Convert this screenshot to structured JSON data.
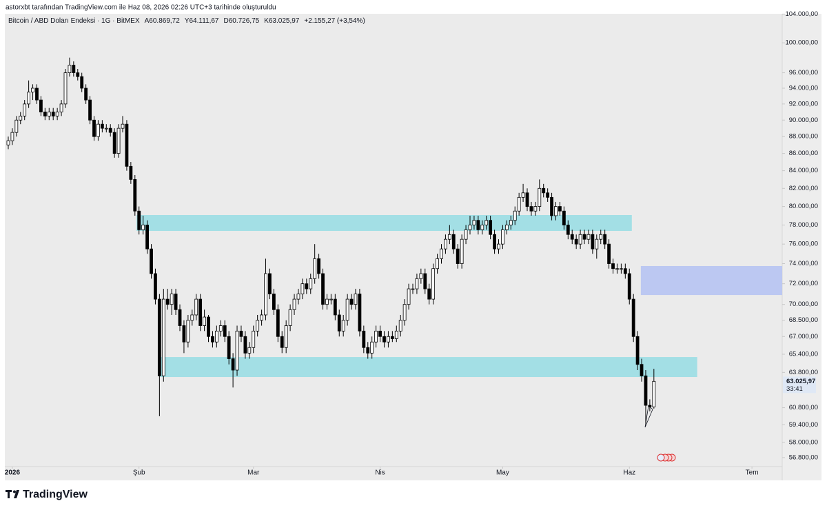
{
  "header": {
    "credit": "astorxbt tarafından TradingView.com ile Haz 08, 2026 02:26 UTC+3 tarihinde oluşturuldu"
  },
  "chart_data": {
    "type": "candlestick",
    "symbol": "Bitcoin / ABD Doları Endeksi · 1G · BitMEX",
    "legend": [
      "A60.869,72",
      "Y64.111,67",
      "D60.726,75",
      "K63.025,97",
      "+2.155,27 (+3,54%)"
    ],
    "x": [
      0,
      1,
      2,
      3,
      4,
      5,
      6,
      7,
      8,
      9,
      10,
      11,
      12,
      13,
      14,
      15,
      16,
      17,
      18,
      19,
      20,
      21,
      22,
      23,
      24,
      25,
      26,
      27,
      28,
      29,
      30,
      31,
      32,
      33,
      34,
      35,
      36,
      37,
      38,
      39,
      40,
      41,
      42,
      43,
      44,
      45,
      46,
      47,
      48,
      49,
      50,
      51,
      52,
      53,
      54,
      55,
      56,
      57,
      58,
      59,
      60,
      61,
      62,
      63,
      64,
      65,
      66,
      67,
      68,
      69,
      70,
      71,
      72,
      73,
      74,
      75,
      76,
      77,
      78,
      79,
      80,
      81,
      82,
      83,
      84,
      85,
      86,
      87,
      88,
      89,
      90,
      91,
      92,
      93,
      94,
      95,
      96,
      97,
      98,
      99,
      100,
      101,
      102,
      103,
      104,
      105,
      106,
      107,
      108,
      109,
      110,
      111,
      112,
      113,
      114,
      115,
      116,
      117,
      118,
      119,
      120,
      121,
      122,
      123,
      124,
      125,
      126,
      127,
      128,
      129,
      130,
      131,
      132,
      133,
      134,
      135,
      136,
      137,
      138,
      139,
      140,
      141,
      142,
      143,
      144,
      145,
      146,
      147,
      148,
      149,
      150,
      151,
      152,
      153,
      154,
      155,
      156,
      157,
      158
    ],
    "ohlc": [
      [
        87000,
        88000,
        86500,
        87500
      ],
      [
        87500,
        89000,
        87000,
        88500
      ],
      [
        88500,
        90500,
        88000,
        90000
      ],
      [
        90000,
        91000,
        89500,
        90500
      ],
      [
        90500,
        92500,
        90000,
        92000
      ],
      [
        92000,
        95000,
        91500,
        93500
      ],
      [
        93500,
        94500,
        92500,
        94000
      ],
      [
        94000,
        94500,
        92000,
        92500
      ],
      [
        92500,
        93000,
        90500,
        91000
      ],
      [
        91000,
        91500,
        90000,
        90500
      ],
      [
        90500,
        91500,
        90000,
        91000
      ],
      [
        91000,
        91500,
        90000,
        90500
      ],
      [
        90500,
        91500,
        90000,
        91000
      ],
      [
        91000,
        92500,
        90500,
        92000
      ],
      [
        92000,
        96500,
        91500,
        96000
      ],
      [
        96000,
        98000,
        95500,
        97000
      ],
      [
        97000,
        97500,
        95500,
        96000
      ],
      [
        96000,
        96500,
        95000,
        95500
      ],
      [
        95500,
        96000,
        93500,
        94000
      ],
      [
        94000,
        94500,
        92000,
        92500
      ],
      [
        92500,
        93000,
        89500,
        90000
      ],
      [
        90000,
        90500,
        87500,
        88000
      ],
      [
        88000,
        90000,
        87500,
        89500
      ],
      [
        89500,
        90000,
        88500,
        89000
      ],
      [
        89000,
        89500,
        88500,
        89000
      ],
      [
        89000,
        89500,
        88000,
        88500
      ],
      [
        88500,
        89000,
        85500,
        86000
      ],
      [
        86000,
        89500,
        85500,
        89000
      ],
      [
        89000,
        90500,
        88500,
        89500
      ],
      [
        89500,
        90000,
        84000,
        84500
      ],
      [
        84500,
        85000,
        82500,
        83000
      ],
      [
        83000,
        83500,
        79000,
        79500
      ],
      [
        79500,
        80000,
        77000,
        77500
      ],
      [
        77500,
        79000,
        77000,
        78000
      ],
      [
        78000,
        78500,
        75000,
        75500
      ],
      [
        75500,
        76000,
        72500,
        73000
      ],
      [
        73000,
        73500,
        70000,
        70500
      ],
      [
        70500,
        71000,
        60100,
        63500
      ],
      [
        63500,
        71500,
        63000,
        70500
      ],
      [
        70500,
        71500,
        69500,
        70000
      ],
      [
        70000,
        71500,
        69000,
        71000
      ],
      [
        71000,
        71500,
        69000,
        69500
      ],
      [
        69500,
        70000,
        67500,
        68000
      ],
      [
        68000,
        68500,
        65500,
        66500
      ],
      [
        66500,
        69000,
        66000,
        68500
      ],
      [
        68500,
        69500,
        68000,
        69000
      ],
      [
        69000,
        71000,
        68500,
        70500
      ],
      [
        70500,
        71000,
        67500,
        68000
      ],
      [
        68000,
        69500,
        67500,
        68800
      ],
      [
        68800,
        69000,
        66500,
        67000
      ],
      [
        67000,
        67500,
        66000,
        66500
      ],
      [
        66500,
        68000,
        66000,
        67500
      ],
      [
        67500,
        68500,
        67000,
        68000
      ],
      [
        68000,
        68500,
        66500,
        67000
      ],
      [
        67000,
        67500,
        64500,
        65000
      ],
      [
        65000,
        65500,
        62500,
        64000
      ],
      [
        64000,
        68000,
        63500,
        67500
      ],
      [
        67500,
        68000,
        66500,
        67000
      ],
      [
        67000,
        67500,
        65000,
        65500
      ],
      [
        65500,
        66500,
        65000,
        66000
      ],
      [
        66000,
        68000,
        65500,
        67500
      ],
      [
        67500,
        69000,
        67000,
        68500
      ],
      [
        68500,
        69500,
        68000,
        69000
      ],
      [
        69000,
        74500,
        68500,
        73000
      ],
      [
        73000,
        73500,
        70500,
        71000
      ],
      [
        71000,
        71500,
        69000,
        69500
      ],
      [
        69500,
        70000,
        66500,
        67000
      ],
      [
        67000,
        67500,
        65500,
        66000
      ],
      [
        66000,
        68500,
        65500,
        68000
      ],
      [
        68000,
        70000,
        67500,
        69500
      ],
      [
        69500,
        71000,
        69000,
        70500
      ],
      [
        70500,
        71500,
        70000,
        71000
      ],
      [
        71000,
        72500,
        70500,
        72000
      ],
      [
        72000,
        72500,
        71000,
        71500
      ],
      [
        71500,
        73000,
        71000,
        72500
      ],
      [
        72500,
        76000,
        72000,
        74500
      ],
      [
        74500,
        75000,
        72500,
        73000
      ],
      [
        73000,
        73500,
        69500,
        70000
      ],
      [
        70000,
        71000,
        69500,
        70500
      ],
      [
        70500,
        71000,
        70000,
        70500
      ],
      [
        70500,
        71000,
        68500,
        69000
      ],
      [
        69000,
        69500,
        67000,
        67500
      ],
      [
        67500,
        69000,
        67000,
        68500
      ],
      [
        68500,
        71000,
        68000,
        70500
      ],
      [
        70500,
        71000,
        69500,
        70000
      ],
      [
        70000,
        71500,
        69500,
        71000
      ],
      [
        71000,
        71500,
        67000,
        67500
      ],
      [
        67500,
        68000,
        65500,
        66000
      ],
      [
        66000,
        66500,
        65000,
        65500
      ],
      [
        65500,
        67000,
        65000,
        66500
      ],
      [
        66500,
        68000,
        66000,
        67500
      ],
      [
        67500,
        68000,
        66500,
        67000
      ],
      [
        67000,
        67500,
        66000,
        66500
      ],
      [
        66500,
        67500,
        66000,
        67000
      ],
      [
        67000,
        67500,
        66500,
        66800
      ],
      [
        66800,
        68000,
        66500,
        67500
      ],
      [
        67500,
        69000,
        67000,
        68500
      ],
      [
        68500,
        70500,
        68000,
        70000
      ],
      [
        70000,
        72000,
        69500,
        71500
      ],
      [
        71500,
        72000,
        71000,
        71500
      ],
      [
        71500,
        73000,
        71000,
        72500
      ],
      [
        72500,
        73500,
        72000,
        73000
      ],
      [
        73000,
        73500,
        71000,
        71500
      ],
      [
        71500,
        72000,
        70000,
        70500
      ],
      [
        70500,
        74000,
        70000,
        73500
      ],
      [
        73500,
        75000,
        73000,
        74500
      ],
      [
        74500,
        76000,
        74000,
        75500
      ],
      [
        75500,
        77000,
        75000,
        76500
      ],
      [
        76500,
        78000,
        76000,
        77000
      ],
      [
        77000,
        77500,
        75000,
        75500
      ],
      [
        75500,
        76000,
        73500,
        74000
      ],
      [
        74000,
        77000,
        73500,
        76500
      ],
      [
        76500,
        78000,
        76000,
        77500
      ],
      [
        77500,
        79000,
        77000,
        78000
      ],
      [
        78000,
        79000,
        77500,
        78500
      ],
      [
        78500,
        79000,
        77000,
        77500
      ],
      [
        77500,
        78500,
        77000,
        78000
      ],
      [
        78000,
        79000,
        77500,
        78500
      ],
      [
        78500,
        79000,
        76500,
        77000
      ],
      [
        77000,
        77500,
        75000,
        75500
      ],
      [
        75500,
        76500,
        75000,
        76000
      ],
      [
        76000,
        78000,
        75500,
        77500
      ],
      [
        77500,
        78500,
        77000,
        78000
      ],
      [
        78000,
        79000,
        77500,
        78500
      ],
      [
        78500,
        80000,
        78000,
        79500
      ],
      [
        79500,
        81500,
        79000,
        81000
      ],
      [
        81000,
        82500,
        80500,
        81500
      ],
      [
        81500,
        82000,
        79500,
        80000
      ],
      [
        80000,
        80500,
        79000,
        79500
      ],
      [
        79500,
        80500,
        79000,
        80000
      ],
      [
        80000,
        83000,
        79500,
        82000
      ],
      [
        82000,
        82500,
        81000,
        81500
      ],
      [
        81500,
        82000,
        80500,
        81000
      ],
      [
        81000,
        81500,
        78500,
        79000
      ],
      [
        79000,
        80500,
        78500,
        80000
      ],
      [
        80000,
        80500,
        79000,
        79500
      ],
      [
        79500,
        80000,
        77500,
        78000
      ],
      [
        78000,
        78500,
        76500,
        77000
      ],
      [
        77000,
        77500,
        76000,
        76500
      ],
      [
        76500,
        77000,
        75500,
        76000
      ],
      [
        76000,
        77500,
        75500,
        77000
      ],
      [
        77000,
        77500,
        76000,
        76500
      ],
      [
        76500,
        77500,
        76000,
        77000
      ],
      [
        77000,
        77500,
        75000,
        75500
      ],
      [
        75500,
        77000,
        74500,
        76500
      ],
      [
        76500,
        77500,
        76000,
        77000
      ],
      [
        77000,
        77500,
        75500,
        76000
      ],
      [
        76000,
        76500,
        73500,
        74000
      ],
      [
        74000,
        74500,
        73000,
        73500
      ],
      [
        73500,
        74000,
        73000,
        73500
      ],
      [
        73500,
        74000,
        73000,
        73500
      ],
      [
        73500,
        74000,
        72500,
        73000
      ],
      [
        73000,
        73500,
        70000,
        70500
      ],
      [
        70500,
        71000,
        66500,
        67000
      ],
      [
        67000,
        67500,
        64000,
        64500
      ],
      [
        64500,
        65000,
        63000,
        63500
      ],
      [
        63500,
        64000,
        59500,
        61000
      ],
      [
        61000,
        61500,
        60500,
        60870
      ],
      [
        60869.72,
        64111.67,
        60726.75,
        63025.97
      ]
    ],
    "up_color": "#ffffff",
    "down_color": "#000000",
    "wick_color": "#000000",
    "log_scale": true,
    "grid": false,
    "xlim": [
      -0.84,
      189.4
    ],
    "ylim": [
      56110,
      104040
    ],
    "yticks": [
      {
        "value": 104000,
        "label": "104.000,00"
      },
      {
        "value": 100000,
        "label": "100.000,00"
      },
      {
        "value": 96000,
        "label": "96.000,00"
      },
      {
        "value": 94000,
        "label": "94.000,00"
      },
      {
        "value": 92000,
        "label": "92.000,00"
      },
      {
        "value": 90000,
        "label": "90.000,00"
      },
      {
        "value": 88000,
        "label": "88.000,00"
      },
      {
        "value": 86000,
        "label": "86.000,00"
      },
      {
        "value": 84000,
        "label": "84.000,00"
      },
      {
        "value": 82000,
        "label": "82.000,00"
      },
      {
        "value": 80000,
        "label": "80.000,00"
      },
      {
        "value": 78000,
        "label": "78.000,00"
      },
      {
        "value": 76000,
        "label": "76.000,00"
      },
      {
        "value": 74000,
        "label": "74.000,00"
      },
      {
        "value": 72000,
        "label": "72.000,00"
      },
      {
        "value": 70000,
        "label": "70.000,00"
      },
      {
        "value": 68500,
        "label": "68.500,00"
      },
      {
        "value": 67000,
        "label": "67.000,00"
      },
      {
        "value": 65400,
        "label": "65.400,00"
      },
      {
        "value": 63800,
        "label": "63.800,00"
      },
      {
        "value": 60800,
        "label": "60.800,00"
      },
      {
        "value": 59400,
        "label": "59.400,00"
      },
      {
        "value": 58000,
        "label": "58.000,00"
      },
      {
        "value": 56800,
        "label": "56.800,00"
      }
    ],
    "xticks": [
      {
        "value": 1,
        "label": "2026"
      },
      {
        "value": 32,
        "label": "Şub"
      },
      {
        "value": 60,
        "label": "Mar"
      },
      {
        "value": 91,
        "label": "Nis"
      },
      {
        "value": 121,
        "label": "May"
      },
      {
        "value": 152,
        "label": "Haz"
      },
      {
        "value": 182,
        "label": "Tem"
      }
    ],
    "last_price_label": "63.025,97",
    "countdown": "33:41",
    "zones": [
      {
        "x": [
          31.4,
          152.6
        ],
        "y": [
          77380,
          79070
        ],
        "color": "#a3dfe5"
      },
      {
        "x": [
          37.1,
          168.6
        ],
        "y": [
          63400,
          65150
        ],
        "color": "#a3dfe5"
      },
      {
        "x": [
          154.8,
          189.4
        ],
        "y": [
          70900,
          73760
        ],
        "color": "#bcc8f2"
      }
    ]
  },
  "footer": {
    "brand": "TradingView"
  }
}
